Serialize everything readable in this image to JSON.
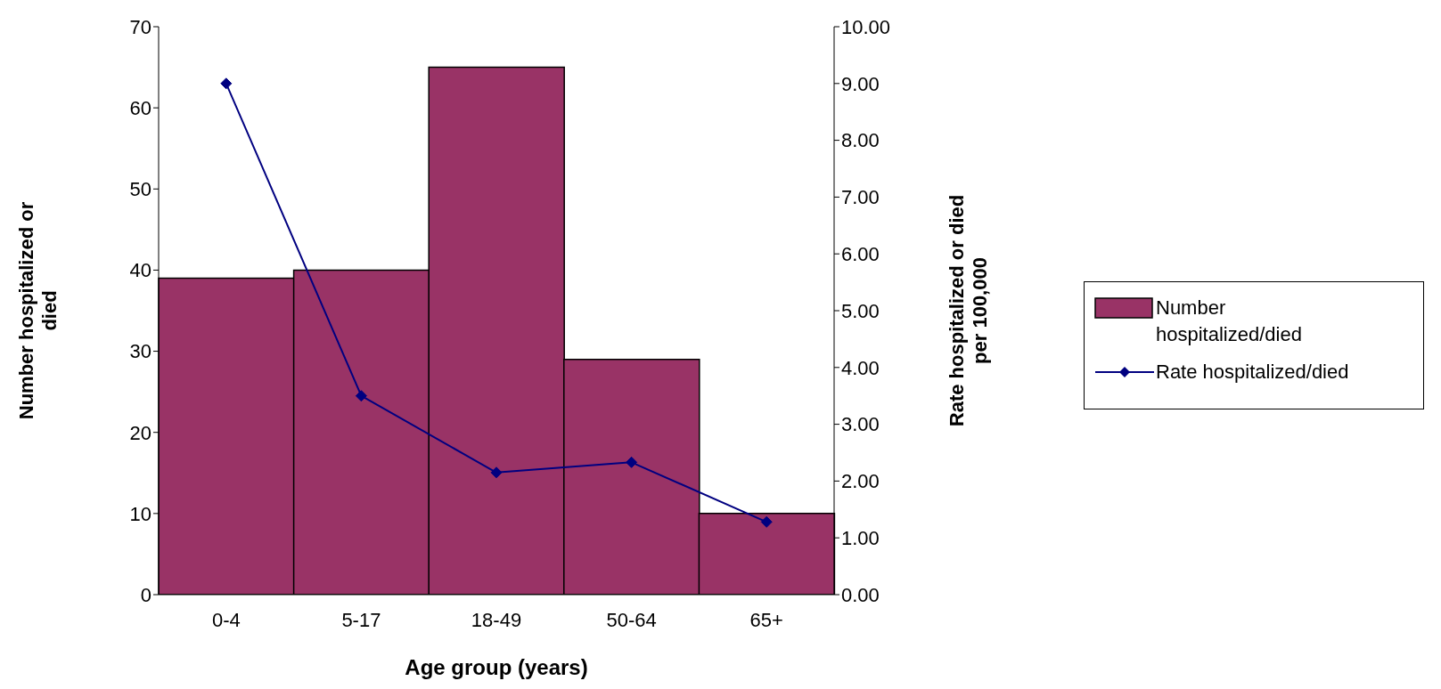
{
  "chart_data": {
    "type": "bar",
    "xlabel": "Age group (years)",
    "ylabel": "Number hospitalized or\ndied",
    "y2label": "Rate hospitalized or died\nper 100,000",
    "categories": [
      "0-4",
      "5-17",
      "18-49",
      "50-64",
      "65+"
    ],
    "series": [
      {
        "name": "Number hospitalized/died",
        "color": "#993366",
        "values": [
          39,
          40,
          65,
          29,
          10
        ]
      },
      {
        "name": "Rate hospitalized/died",
        "type": "line",
        "axis": "y2",
        "color": "#000080",
        "marker": "diamond",
        "values": [
          9.0,
          3.5,
          2.15,
          2.33,
          1.28
        ]
      }
    ],
    "ylim": [
      0,
      70
    ],
    "yticks": [
      0,
      10,
      20,
      30,
      40,
      50,
      60,
      70
    ],
    "y2lim": [
      0,
      10
    ],
    "y2ticks": [
      {
        "value": 0,
        "label": "0.00"
      },
      {
        "value": 1,
        "label": "1.00"
      },
      {
        "value": 2,
        "label": "2.00"
      },
      {
        "value": 3,
        "label": "3.00"
      },
      {
        "value": 4,
        "label": "4.00"
      },
      {
        "value": 5,
        "label": "5.00"
      },
      {
        "value": 6,
        "label": "6.00"
      },
      {
        "value": 7,
        "label": "7.00"
      },
      {
        "value": 8,
        "label": "8.00"
      },
      {
        "value": 9,
        "label": "9.00"
      },
      {
        "value": 10,
        "label": "10.00"
      }
    ],
    "legend": "right",
    "grid": false
  }
}
